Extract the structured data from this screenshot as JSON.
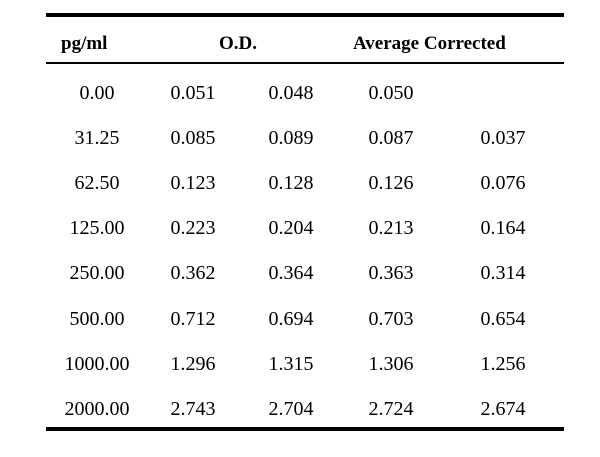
{
  "headers": {
    "conc": "pg/ml",
    "od": "O.D.",
    "avg_corrected": "Average Corrected"
  },
  "rows": [
    [
      "0.00",
      "0.051",
      "0.048",
      "0.050",
      ""
    ],
    [
      "31.25",
      "0.085",
      "0.089",
      "0.087",
      "0.037"
    ],
    [
      "62.50",
      "0.123",
      "0.128",
      "0.126",
      "0.076"
    ],
    [
      "125.00",
      "0.223",
      "0.204",
      "0.213",
      "0.164"
    ],
    [
      "250.00",
      "0.362",
      "0.364",
      "0.363",
      "0.314"
    ],
    [
      "500.00",
      "0.712",
      "0.694",
      "0.703",
      "0.654"
    ],
    [
      "1000.00",
      "1.296",
      "1.315",
      "1.306",
      "1.256"
    ],
    [
      "2000.00",
      "2.743",
      "2.704",
      "2.724",
      "2.674"
    ]
  ]
}
